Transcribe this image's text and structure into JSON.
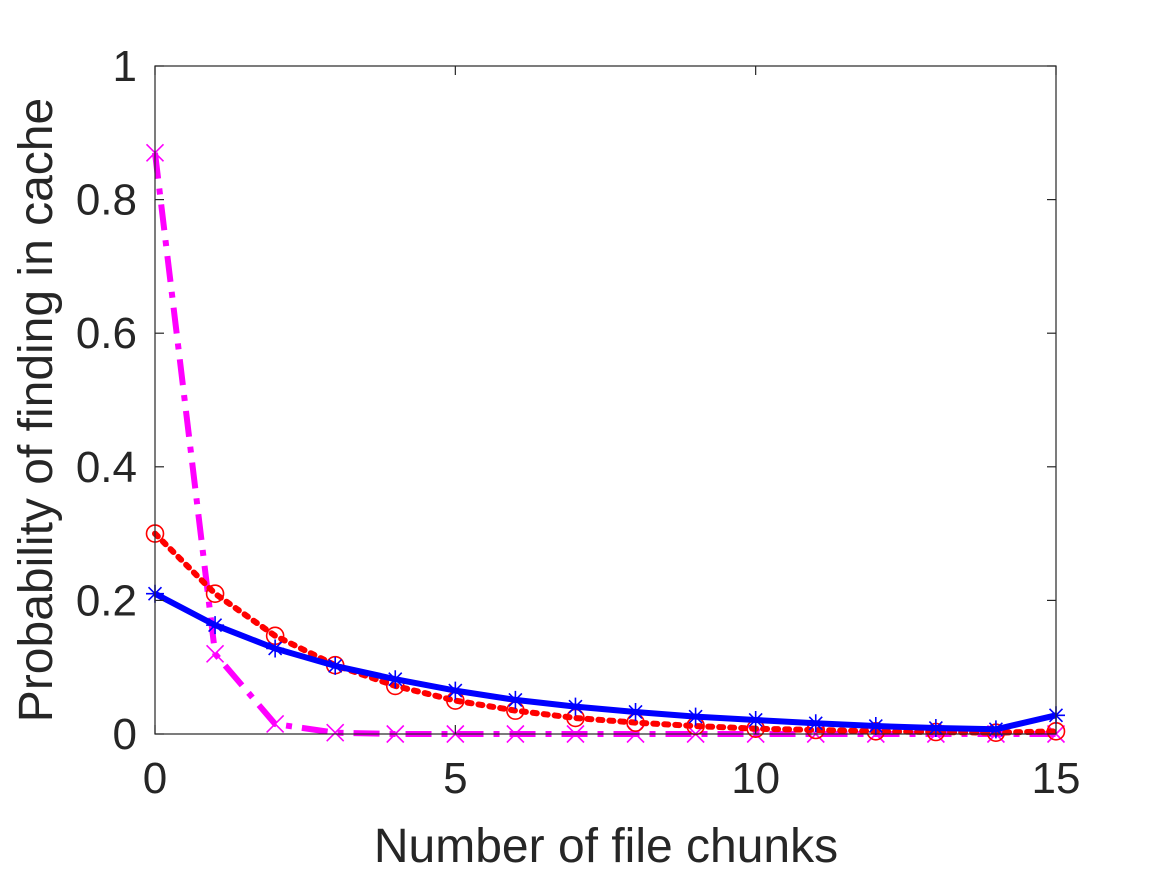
{
  "chart_data": {
    "type": "line",
    "title": "",
    "xlabel": "Number of file chunks",
    "ylabel": "Probability of finding in cache",
    "xlim": [
      0,
      15
    ],
    "ylim": [
      0,
      1
    ],
    "xticks": [
      0,
      5,
      10,
      15
    ],
    "xtick_labels": [
      "0",
      "5",
      "10",
      "15"
    ],
    "yticks": [
      0,
      0.2,
      0.4,
      0.6,
      0.8,
      1
    ],
    "ytick_labels": [
      "0",
      "0.2",
      "0.4",
      "0.6",
      "0.8",
      "1"
    ],
    "grid": false,
    "legend": "none",
    "x": [
      0,
      1,
      2,
      3,
      4,
      5,
      6,
      7,
      8,
      9,
      10,
      11,
      12,
      13,
      14,
      15
    ],
    "series": [
      {
        "color": "#0000ff",
        "line_style": "solid",
        "marker": "asterisk",
        "values": [
          0.21,
          0.163,
          0.128,
          0.102,
          0.082,
          0.065,
          0.051,
          0.041,
          0.033,
          0.026,
          0.021,
          0.016,
          0.012,
          0.009,
          0.007,
          0.028
        ]
      },
      {
        "color": "#ff0000",
        "line_style": "dotted",
        "marker": "circle",
        "values": [
          0.3,
          0.21,
          0.147,
          0.103,
          0.072,
          0.05,
          0.035,
          0.024,
          0.017,
          0.012,
          0.008,
          0.006,
          0.004,
          0.003,
          0.002,
          0.004
        ]
      },
      {
        "color": "#ff00ff",
        "line_style": "dashdot",
        "marker": "x",
        "values": [
          0.87,
          0.12,
          0.015,
          0.002,
          0.0,
          0.0,
          0.0,
          0.0,
          0.0,
          0.0,
          0.0,
          0.0,
          0.0,
          0.0,
          0.0,
          0.0
        ]
      }
    ]
  }
}
